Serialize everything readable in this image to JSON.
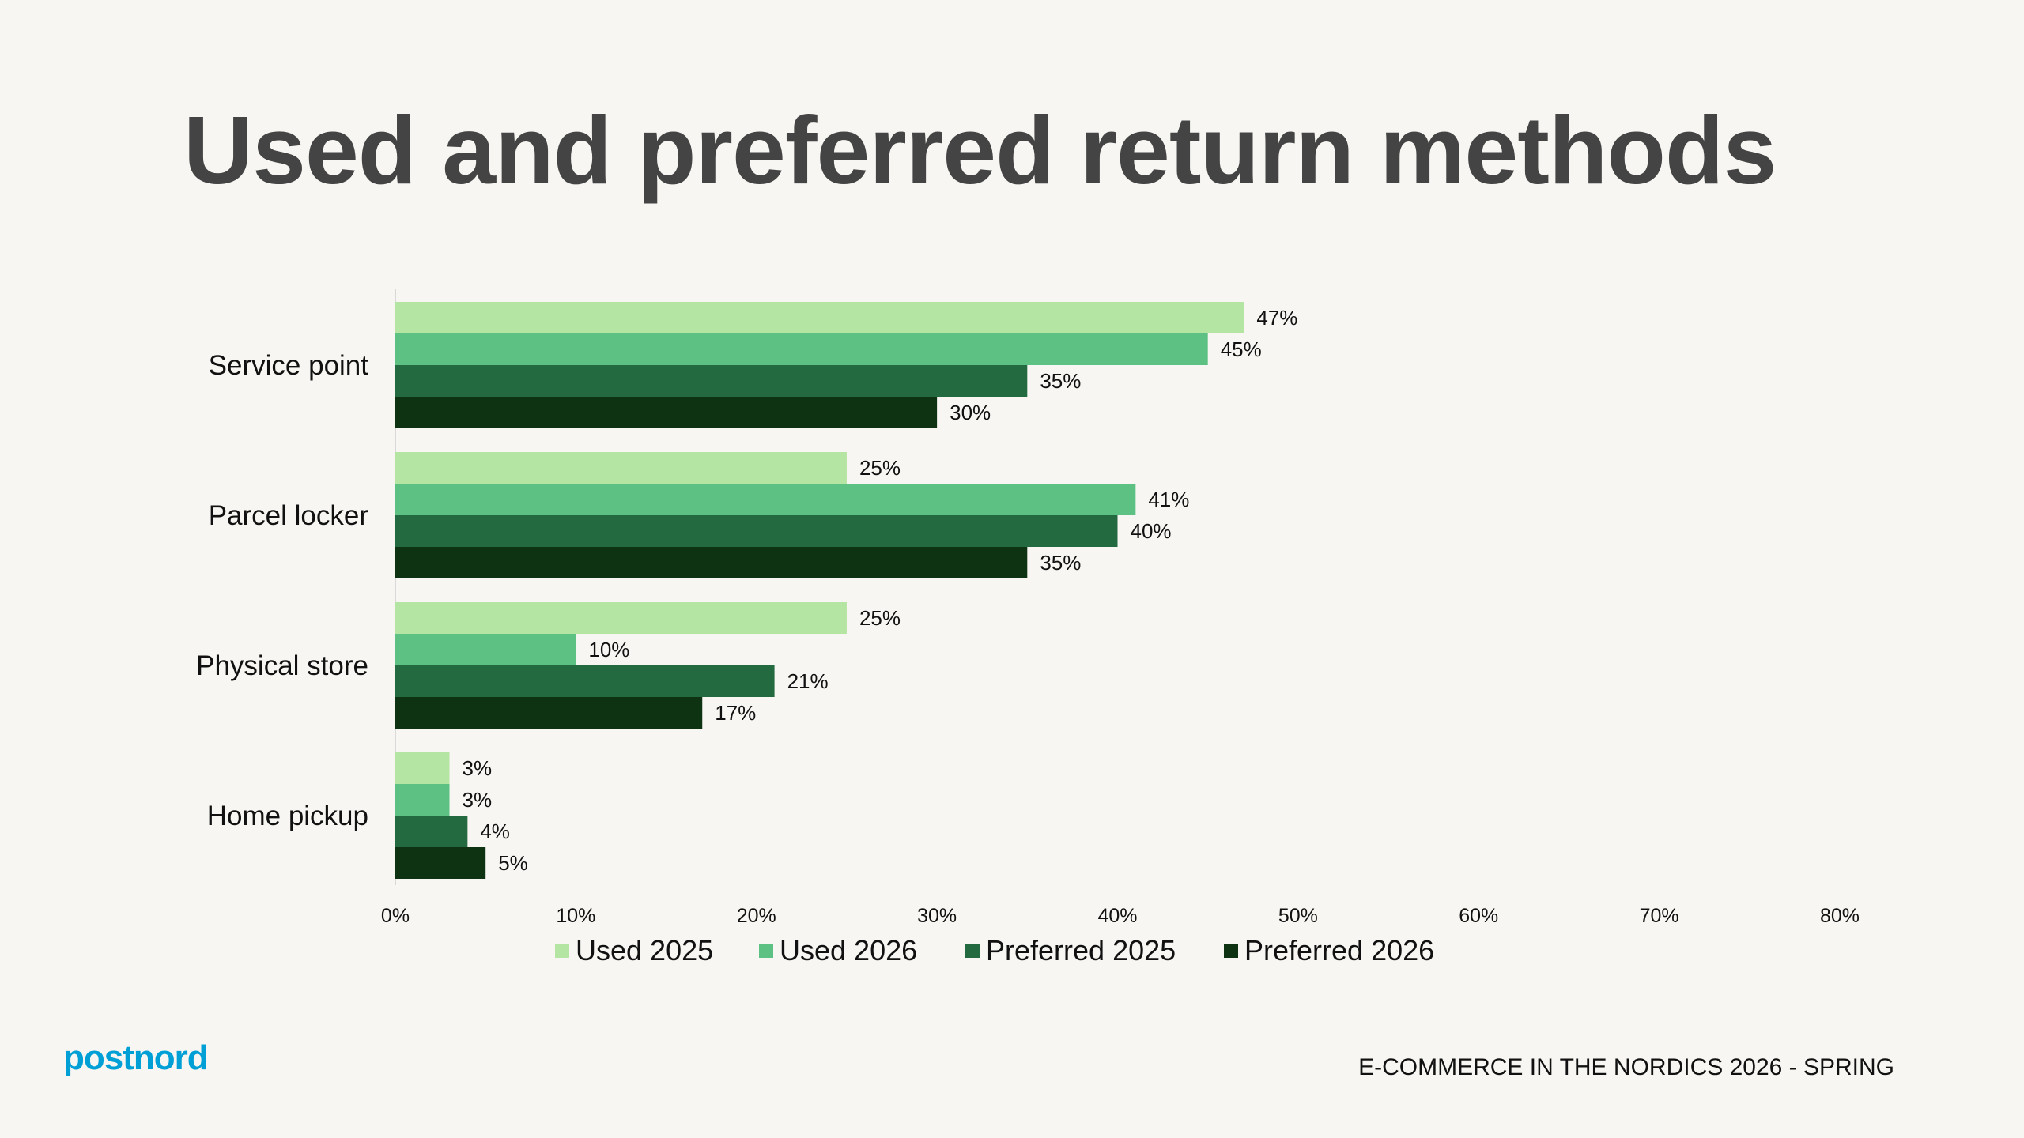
{
  "title": "Used and preferred return methods",
  "footer": "E-COMMERCE IN THE NORDICS 2026 - SPRING",
  "logo": "postnord",
  "colors": {
    "background": "#f7f6f2",
    "logo": "#00a0d6"
  },
  "chart_data": {
    "type": "bar",
    "orientation": "horizontal",
    "title": "Used and preferred return methods",
    "categories": [
      "Service point",
      "Parcel locker",
      "Physical store",
      "Home pickup"
    ],
    "series": [
      {
        "name": "Used 2025",
        "color": "#b5e5a2",
        "values": [
          47,
          25,
          25,
          3
        ]
      },
      {
        "name": "Used 2026",
        "color": "#5cc182",
        "values": [
          45,
          41,
          10,
          3
        ]
      },
      {
        "name": "Preferred 2025",
        "color": "#246a40",
        "values": [
          35,
          40,
          21,
          4
        ]
      },
      {
        "name": "Preferred 2026",
        "color": "#0d3313",
        "values": [
          30,
          35,
          17,
          5
        ]
      }
    ],
    "xlim": [
      0,
      80
    ],
    "xticks": [
      "0%",
      "10%",
      "20%",
      "30%",
      "40%",
      "50%",
      "60%",
      "70%",
      "80%"
    ],
    "value_suffix": "%",
    "legend_position": "bottom",
    "grid": false
  }
}
